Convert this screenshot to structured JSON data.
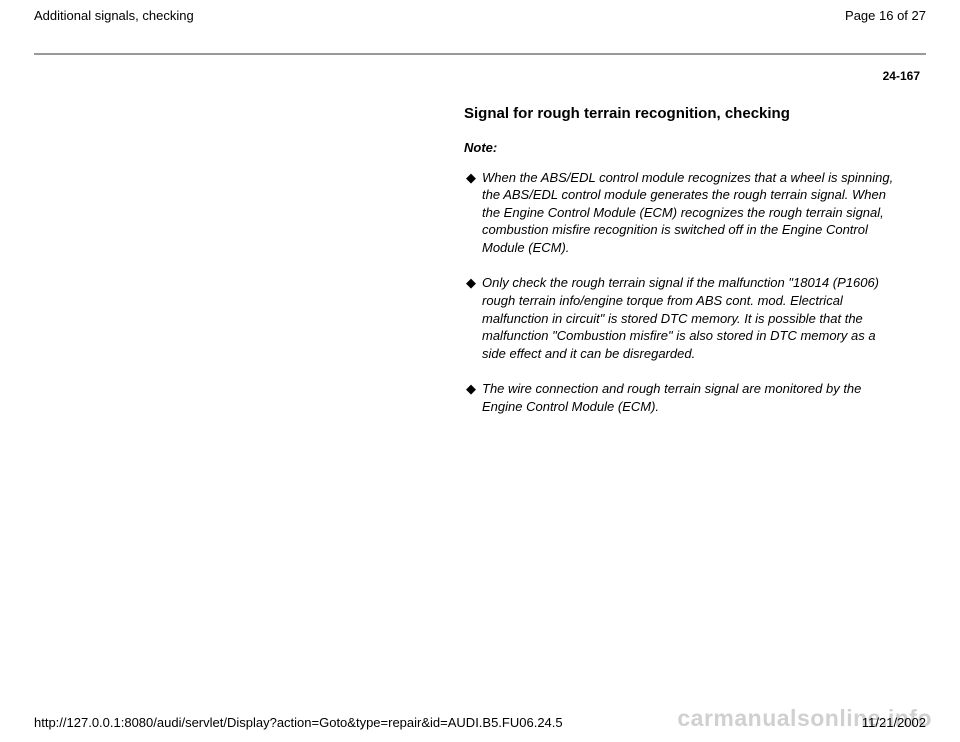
{
  "header": {
    "title": "Additional signals, checking",
    "page_of": "Page 16 of 27"
  },
  "page_number": "24-167",
  "section": {
    "title": "Signal for rough terrain recognition, checking",
    "note_label": "Note:",
    "bullets": [
      "When the ABS/EDL control module recognizes that a wheel is spinning, the ABS/EDL control module generates the rough terrain signal. When the Engine Control Module (ECM) recognizes the rough terrain signal, combustion misfire recognition is switched off in the Engine Control Module (ECM).",
      "Only check the rough terrain signal if the malfunction \"18014 (P1606) rough terrain info/engine torque from ABS cont. mod. Electrical malfunction in circuit\" is stored DTC memory. It is possible that the malfunction \"Combustion misfire\" is also stored in DTC memory as a side effect and it can be disregarded.",
      "The wire connection and rough terrain signal are monitored by the Engine Control Module (ECM)."
    ]
  },
  "footer": {
    "url": "http://127.0.0.1:8080/audi/servlet/Display?action=Goto&type=repair&id=AUDI.B5.FU06.24.5",
    "date": "11/21/2002"
  },
  "watermark": "carmanualsonline.info",
  "style": {
    "background_color": "#ffffff",
    "text_color": "#000000",
    "hr_color": "#999999",
    "watermark_color": "rgba(120,120,120,0.35)",
    "header_fontsize": 13,
    "body_fontsize": 13,
    "title_fontsize": 15,
    "pagenum_fontsize": 12,
    "watermark_fontsize": 23
  }
}
